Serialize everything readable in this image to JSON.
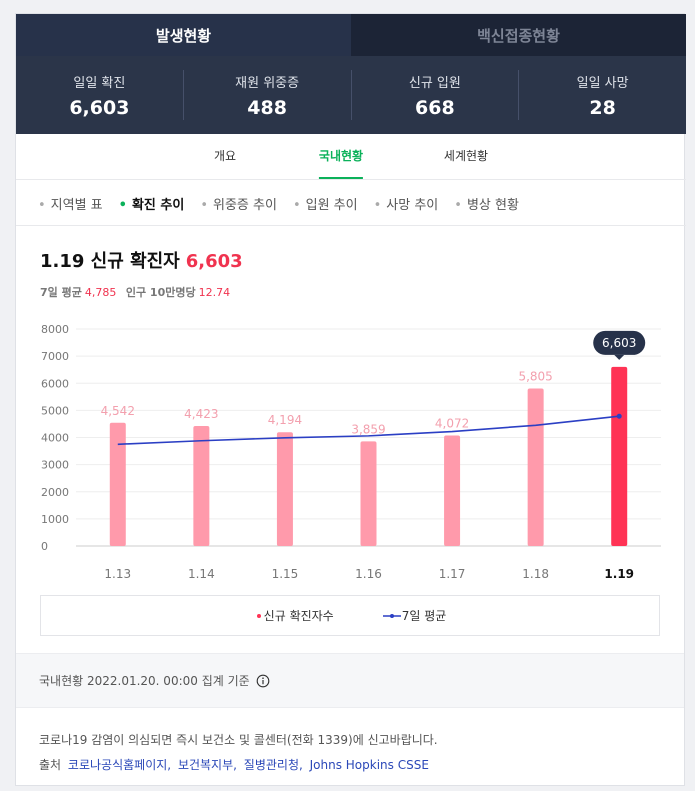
{
  "tabs": [
    "발생현황",
    "백신접종현황"
  ],
  "stats": [
    {
      "label": "일일 확진",
      "value": "6,603"
    },
    {
      "label": "재원 위중증",
      "value": "488"
    },
    {
      "label": "신규 입원",
      "value": "668"
    },
    {
      "label": "일일 사망",
      "value": "28"
    }
  ],
  "nav": [
    "개요",
    "국내현황",
    "세계현황"
  ],
  "sub_nav": [
    "지역별 표",
    "확진 추이",
    "위중증 추이",
    "입원 추이",
    "사망 추이",
    "병상 현황"
  ],
  "summary": {
    "title": "1.19 신규 확진자",
    "value": "6,603",
    "items": [
      {
        "label": "7일 평균",
        "value": "4,785"
      },
      {
        "label": "인구 10만명당",
        "value": "12.74"
      }
    ]
  },
  "chart_data": {
    "type": "bar",
    "categories": [
      "1.13",
      "1.14",
      "1.15",
      "1.16",
      "1.17",
      "1.18",
      "1.19"
    ],
    "series": [
      {
        "name": "신규 확진자수",
        "color": "#ff9aab",
        "highlight_color": "#ff3355",
        "values": [
          4542,
          4423,
          4194,
          3859,
          4072,
          5805,
          6603
        ],
        "value_labels": [
          "4,542",
          "4,423",
          "4,194",
          "3,859",
          "4,072",
          "5,805",
          "6,603"
        ]
      },
      {
        "name": "7일 평균",
        "type": "line",
        "color": "#2b3fc4",
        "values": [
          3750,
          3880,
          3990,
          4060,
          4220,
          4450,
          4785
        ]
      }
    ],
    "ylim": [
      0,
      8000
    ],
    "yticks": [
      0,
      1000,
      2000,
      3000,
      4000,
      5000,
      6000,
      7000,
      8000
    ],
    "grid": true
  },
  "footer": {
    "updated": "국내현황 2022.01.20. 00:00 집계 기준",
    "notice": "코로나19 감염이 의심되면 즉시 보건소 및 콜센터(전화 1339)에 신고바랍니다.",
    "source_label": "출처",
    "sources": [
      "코로나공식홈페이지,",
      "보건복지부,",
      "질병관리청,",
      "Johns Hopkins CSSE"
    ]
  }
}
